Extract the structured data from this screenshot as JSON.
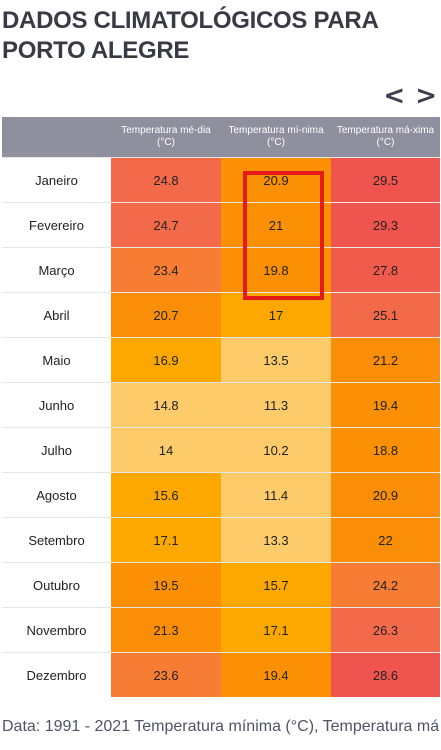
{
  "title": "DADOS CLIMATOLÓGICOS PARA PORTO ALEGRE",
  "nav": {
    "prev": "<",
    "next": ">"
  },
  "headers": [
    "Temperatura mé-dia (°C)",
    "Temperatura mí-nima (°C)",
    "Temperatura má-xima (°C)"
  ],
  "rows": [
    {
      "month": "Janeiro",
      "cells": [
        {
          "v": "24.8",
          "c": "#f26a4a"
        },
        {
          "v": "20.9",
          "c": "#fb9005"
        },
        {
          "v": "29.5",
          "c": "#f0544f"
        }
      ]
    },
    {
      "month": "Fevereiro",
      "cells": [
        {
          "v": "24.7",
          "c": "#f26a4a"
        },
        {
          "v": "21",
          "c": "#fb9005"
        },
        {
          "v": "29.3",
          "c": "#f0544f"
        }
      ]
    },
    {
      "month": "Março",
      "cells": [
        {
          "v": "23.4",
          "c": "#f77d34"
        },
        {
          "v": "19.8",
          "c": "#fb9005"
        },
        {
          "v": "27.8",
          "c": "#f05b4c"
        }
      ]
    },
    {
      "month": "Abril",
      "cells": [
        {
          "v": "20.7",
          "c": "#fb8e07"
        },
        {
          "v": "17",
          "c": "#fda800"
        },
        {
          "v": "25.1",
          "c": "#f26a4a"
        }
      ]
    },
    {
      "month": "Maio",
      "cells": [
        {
          "v": "16.9",
          "c": "#fda800"
        },
        {
          "v": "13.5",
          "c": "#fdcb6a"
        },
        {
          "v": "21.2",
          "c": "#fb8e07"
        }
      ]
    },
    {
      "month": "Junho",
      "cells": [
        {
          "v": "14.8",
          "c": "#fdcb6a"
        },
        {
          "v": "11.3",
          "c": "#fdcb6a"
        },
        {
          "v": "19.4",
          "c": "#fb9005"
        }
      ]
    },
    {
      "month": "Julho",
      "cells": [
        {
          "v": "14",
          "c": "#fdcb6a"
        },
        {
          "v": "10.2",
          "c": "#fdcb6a"
        },
        {
          "v": "18.8",
          "c": "#fb9005"
        }
      ]
    },
    {
      "month": "Agosto",
      "cells": [
        {
          "v": "15.6",
          "c": "#fda800"
        },
        {
          "v": "11.4",
          "c": "#fdcb6a"
        },
        {
          "v": "20.9",
          "c": "#fb8e07"
        }
      ]
    },
    {
      "month": "Setembro",
      "cells": [
        {
          "v": "17.1",
          "c": "#fda800"
        },
        {
          "v": "13.3",
          "c": "#fdcb6a"
        },
        {
          "v": "22",
          "c": "#fb8e07"
        }
      ]
    },
    {
      "month": "Outubro",
      "cells": [
        {
          "v": "19.5",
          "c": "#fb9005"
        },
        {
          "v": "15.7",
          "c": "#fda800"
        },
        {
          "v": "24.2",
          "c": "#f77d34"
        }
      ]
    },
    {
      "month": "Novembro",
      "cells": [
        {
          "v": "21.3",
          "c": "#fb8e07"
        },
        {
          "v": "17.1",
          "c": "#fda800"
        },
        {
          "v": "26.3",
          "c": "#f26a4a"
        }
      ]
    },
    {
      "month": "Dezembro",
      "cells": [
        {
          "v": "23.6",
          "c": "#f77d34"
        },
        {
          "v": "19.4",
          "c": "#fb9005"
        },
        {
          "v": "28.6",
          "c": "#f0544f"
        }
      ]
    }
  ],
  "highlight_color": "#e51b1b",
  "footer": "Data: 1991 - 2021 Temperatura mínima (°C), Temperatura má-"
}
